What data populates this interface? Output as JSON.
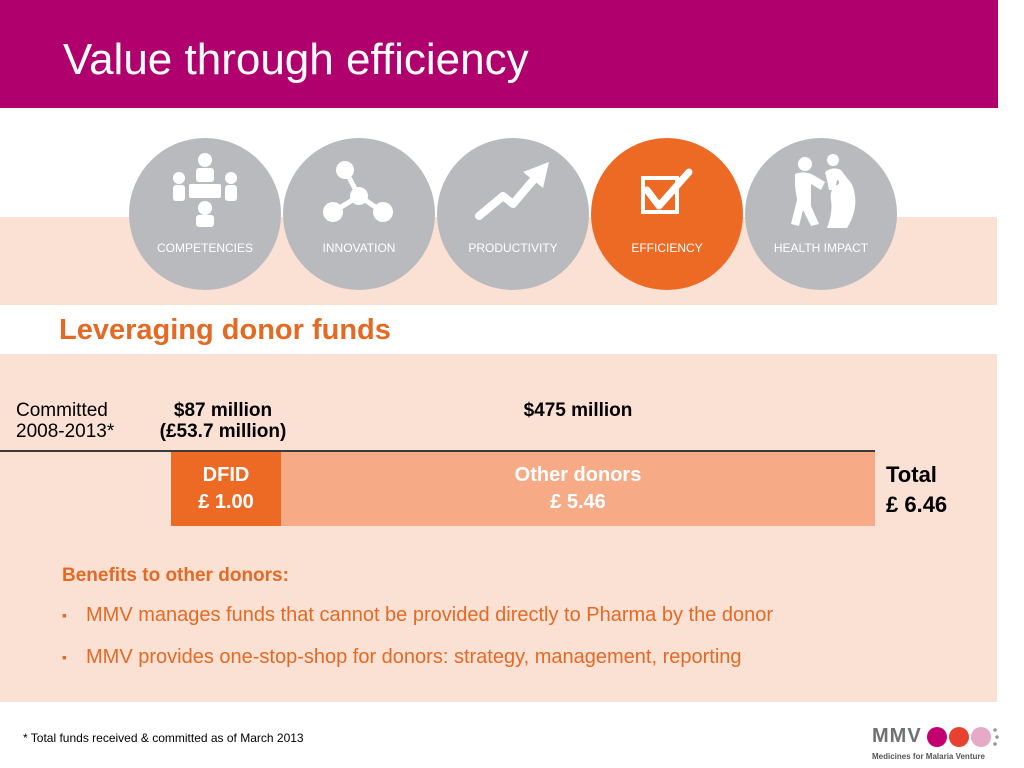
{
  "header": {
    "title": "Value through efficiency"
  },
  "circles": [
    {
      "label": "COMPETENCIES",
      "icon": "people-meeting-icon",
      "active": false
    },
    {
      "label": "INNOVATION",
      "icon": "molecule-icon",
      "active": false
    },
    {
      "label": "PRODUCTIVITY",
      "icon": "growth-arrow-icon",
      "active": false
    },
    {
      "label": "EFFICIENCY",
      "icon": "checkbox-icon",
      "active": true
    },
    {
      "label": "HEALTH IMPACT",
      "icon": "family-icon",
      "active": false
    }
  ],
  "subtitle": "Leveraging donor funds",
  "funding": {
    "committed_line1": "Committed",
    "committed_line2": "2008-2013*",
    "dfid_amount_usd": "$87 million",
    "dfid_amount_gbp": "(£53.7 million)",
    "other_amount_usd": "$475 million",
    "dfid_label": "DFID",
    "dfid_ratio": "£ 1.00",
    "other_label": "Other donors",
    "other_ratio": "£ 5.46",
    "total_label": "Total",
    "total_value": "£ 6.46"
  },
  "benefits": {
    "heading": "Benefits to other donors:",
    "items": [
      "MMV manages funds that cannot be provided directly to Pharma by the donor",
      "MMV provides one-stop-shop for donors: strategy, management, reporting"
    ]
  },
  "footnote": "* Total funds received & committed as of March 2013",
  "logo": {
    "text": "MMV",
    "tagline": "Medicines for Malaria Venture"
  },
  "colors": {
    "header": "#b0006e",
    "accent": "#ec6a23",
    "peach": "#fbe0d4",
    "other_bar": "#f6aa86",
    "circle_gray": "#b9babd"
  }
}
